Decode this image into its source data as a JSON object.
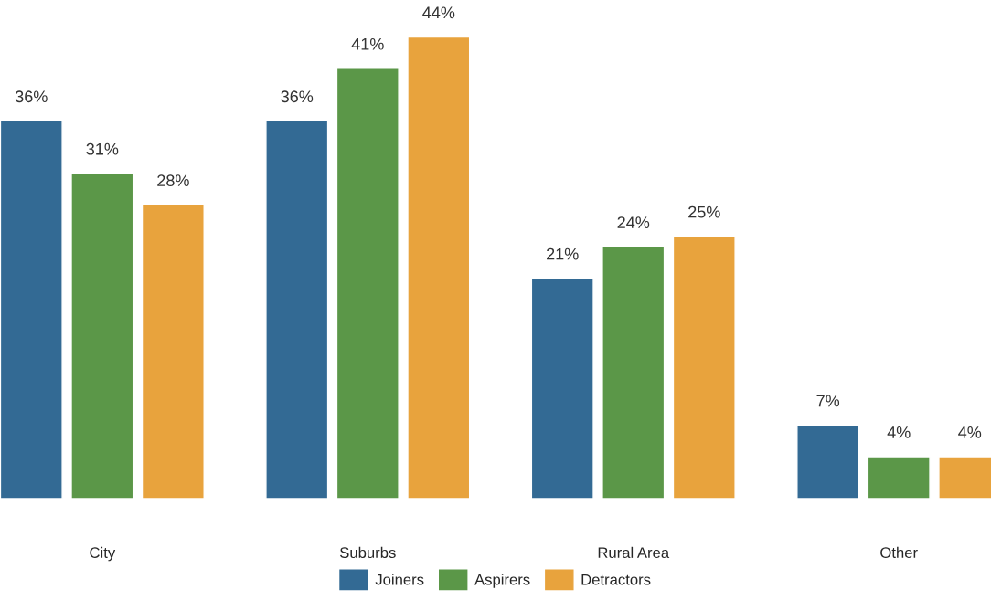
{
  "chart_data": {
    "type": "bar",
    "categories": [
      "City",
      "Suburbs",
      "Rural Area",
      "Other"
    ],
    "series": [
      {
        "name": "Joiners",
        "color": "#336a94",
        "values": [
          36,
          36,
          21,
          7
        ],
        "value_labels": [
          "36%",
          "36%",
          "21%",
          "7%"
        ]
      },
      {
        "name": "Aspirers",
        "color": "#5b9748",
        "values": [
          31,
          41,
          24,
          4
        ],
        "value_labels": [
          "31%",
          "41%",
          "24%",
          "4%"
        ]
      },
      {
        "name": "Detractors",
        "color": "#e8a33d",
        "values": [
          28,
          44,
          25,
          4
        ],
        "value_labels": [
          "28%",
          "44%",
          "25%",
          "4%"
        ]
      }
    ],
    "legend": "bottom",
    "grid": false,
    "tick_labels": "x"
  }
}
